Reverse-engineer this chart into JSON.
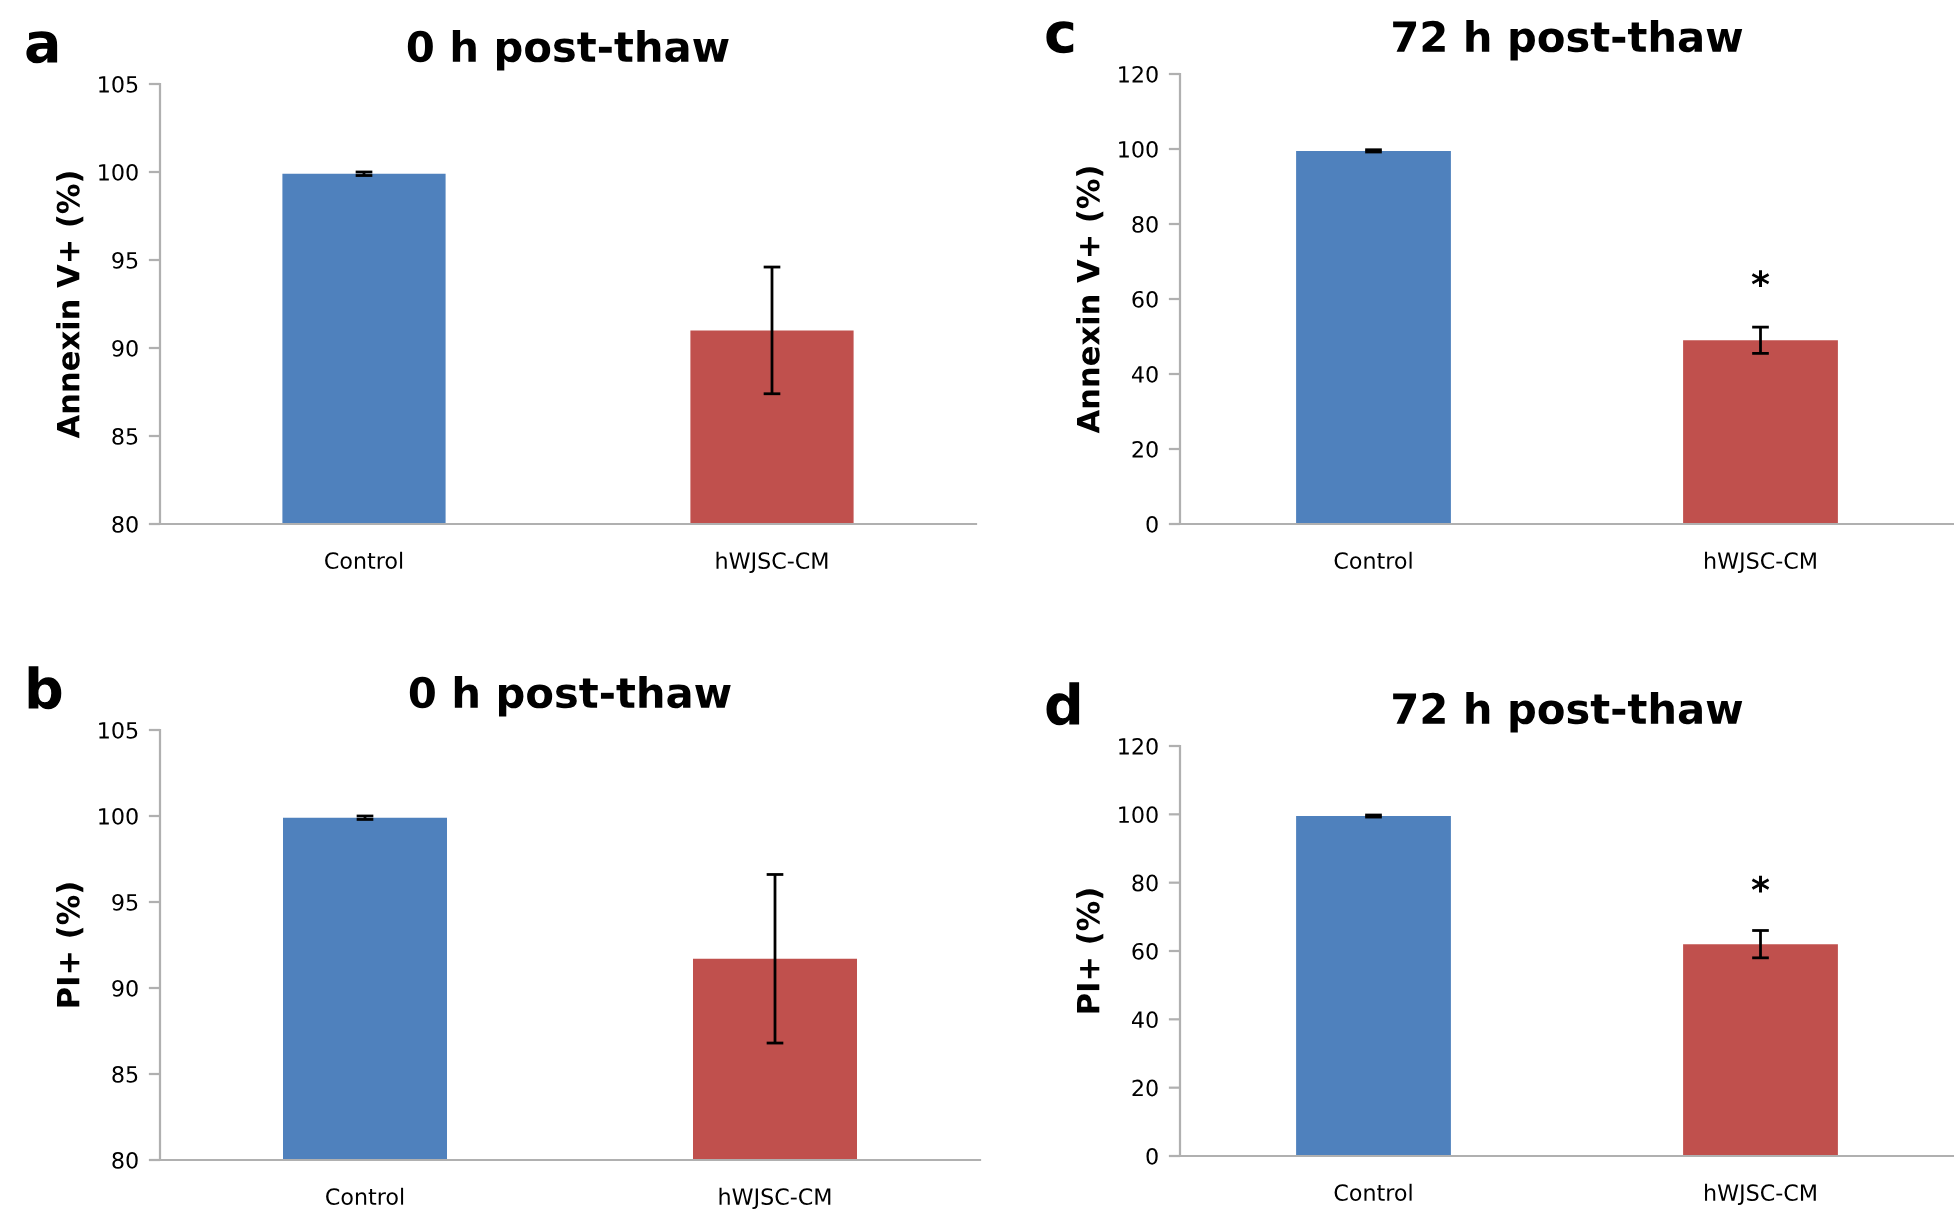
{
  "chart_data": [
    {
      "type": "bar",
      "title": "0 h post-thaw",
      "ylabel": "Annexin V+ (%)",
      "categories": [
        "Control",
        "hWJSC-CM"
      ],
      "values": [
        99.9,
        91.0
      ],
      "errors": [
        0.1,
        3.6
      ],
      "colors": [
        "#4f81bd",
        "#c0504d"
      ],
      "ylim": [
        80,
        105
      ],
      "yticks": [
        80,
        85,
        90,
        95,
        100,
        105
      ],
      "grid": false,
      "annotations": [
        "a"
      ]
    },
    {
      "type": "bar",
      "title": "72 h post-thaw",
      "ylabel": "Annexin V+ (%)",
      "categories": [
        "Control",
        "hWJSC-CM"
      ],
      "values": [
        99.5,
        49
      ],
      "errors": [
        0.3,
        3.5
      ],
      "colors": [
        "#4f81bd",
        "#c0504d"
      ],
      "ylim": [
        0,
        120
      ],
      "yticks": [
        0,
        20,
        40,
        60,
        80,
        100,
        120
      ],
      "grid": false,
      "annotations": [
        "c",
        "*"
      ]
    },
    {
      "type": "bar",
      "title": "0 h post-thaw",
      "ylabel": "PI+ (%)",
      "categories": [
        "Control",
        "hWJSC-CM"
      ],
      "values": [
        99.9,
        91.7
      ],
      "errors": [
        0.1,
        4.9
      ],
      "colors": [
        "#4f81bd",
        "#c0504d"
      ],
      "ylim": [
        80,
        105
      ],
      "yticks": [
        80,
        85,
        90,
        95,
        100,
        105
      ],
      "grid": false,
      "annotations": [
        "b"
      ]
    },
    {
      "type": "bar",
      "title": "72 h post-thaw",
      "ylabel": "PI+ (%)",
      "categories": [
        "Control",
        "hWJSC-CM"
      ],
      "values": [
        99.5,
        62
      ],
      "errors": [
        0.3,
        4
      ],
      "colors": [
        "#4f81bd",
        "#c0504d"
      ],
      "ylim": [
        0,
        120
      ],
      "yticks": [
        0,
        20,
        40,
        60,
        80,
        100,
        120
      ],
      "grid": false,
      "annotations": [
        "d",
        "*"
      ]
    }
  ]
}
